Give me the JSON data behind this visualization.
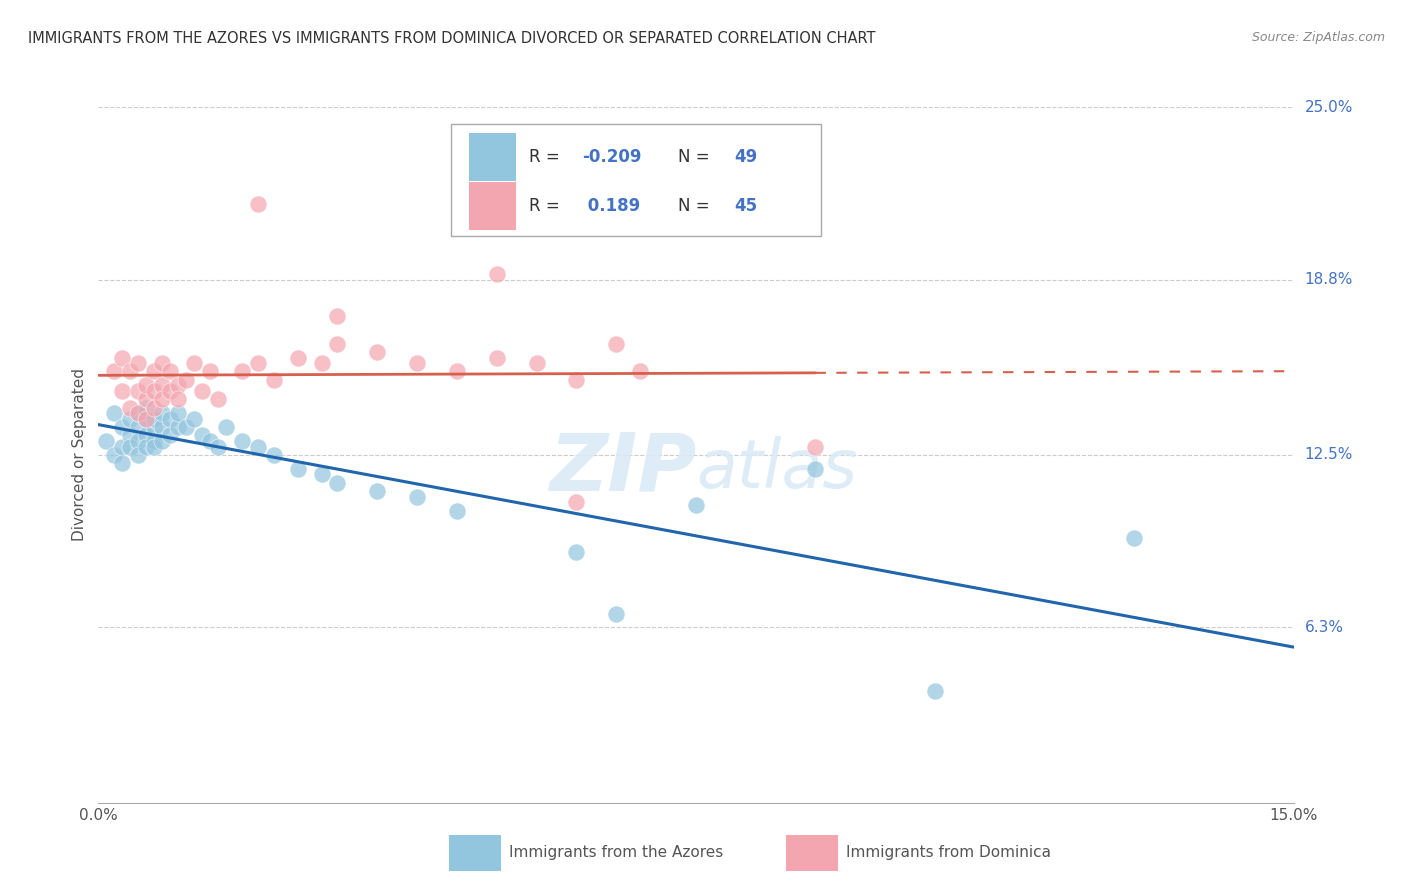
{
  "title": "IMMIGRANTS FROM THE AZORES VS IMMIGRANTS FROM DOMINICA DIVORCED OR SEPARATED CORRELATION CHART",
  "source": "Source: ZipAtlas.com",
  "ylabel": "Divorced or Separated",
  "xlim": [
    0.0,
    0.15
  ],
  "ylim": [
    0.0,
    0.25
  ],
  "y_ticks_right": [
    0.063,
    0.125,
    0.188,
    0.25
  ],
  "y_tick_labels_right": [
    "6.3%",
    "12.5%",
    "18.8%",
    "25.0%"
  ],
  "R_blue": -0.209,
  "N_blue": 49,
  "R_pink": 0.189,
  "N_pink": 45,
  "blue_color": "#92c5de",
  "pink_color": "#f4a6b0",
  "blue_line_color": "#2166ac",
  "pink_line_color": "#d6604d",
  "watermark_color": "#daeaf6",
  "azores_x": [
    0.001,
    0.002,
    0.002,
    0.003,
    0.003,
    0.003,
    0.004,
    0.004,
    0.004,
    0.005,
    0.005,
    0.005,
    0.005,
    0.006,
    0.006,
    0.006,
    0.006,
    0.007,
    0.007,
    0.007,
    0.007,
    0.008,
    0.008,
    0.008,
    0.009,
    0.009,
    0.01,
    0.01,
    0.011,
    0.012,
    0.013,
    0.014,
    0.015,
    0.016,
    0.018,
    0.02,
    0.022,
    0.025,
    0.028,
    0.03,
    0.035,
    0.04,
    0.045,
    0.06,
    0.065,
    0.075,
    0.09,
    0.105,
    0.13
  ],
  "azores_y": [
    0.13,
    0.125,
    0.14,
    0.128,
    0.135,
    0.122,
    0.132,
    0.138,
    0.128,
    0.135,
    0.13,
    0.14,
    0.125,
    0.132,
    0.138,
    0.128,
    0.142,
    0.135,
    0.13,
    0.138,
    0.128,
    0.135,
    0.14,
    0.13,
    0.138,
    0.132,
    0.135,
    0.14,
    0.135,
    0.138,
    0.132,
    0.13,
    0.128,
    0.135,
    0.13,
    0.128,
    0.125,
    0.12,
    0.118,
    0.115,
    0.112,
    0.11,
    0.105,
    0.09,
    0.068,
    0.107,
    0.12,
    0.04,
    0.095
  ],
  "dominica_x": [
    0.002,
    0.003,
    0.003,
    0.004,
    0.004,
    0.005,
    0.005,
    0.005,
    0.006,
    0.006,
    0.006,
    0.007,
    0.007,
    0.007,
    0.008,
    0.008,
    0.008,
    0.009,
    0.009,
    0.01,
    0.01,
    0.011,
    0.012,
    0.013,
    0.014,
    0.015,
    0.018,
    0.02,
    0.022,
    0.025,
    0.028,
    0.03,
    0.035,
    0.04,
    0.045,
    0.05,
    0.055,
    0.06,
    0.065,
    0.068,
    0.02,
    0.03,
    0.05,
    0.09,
    0.06
  ],
  "dominica_y": [
    0.155,
    0.148,
    0.16,
    0.142,
    0.155,
    0.148,
    0.14,
    0.158,
    0.145,
    0.15,
    0.138,
    0.148,
    0.155,
    0.142,
    0.15,
    0.145,
    0.158,
    0.148,
    0.155,
    0.15,
    0.145,
    0.152,
    0.158,
    0.148,
    0.155,
    0.145,
    0.155,
    0.158,
    0.152,
    0.16,
    0.158,
    0.165,
    0.162,
    0.158,
    0.155,
    0.16,
    0.158,
    0.152,
    0.165,
    0.155,
    0.215,
    0.175,
    0.19,
    0.128,
    0.108
  ]
}
